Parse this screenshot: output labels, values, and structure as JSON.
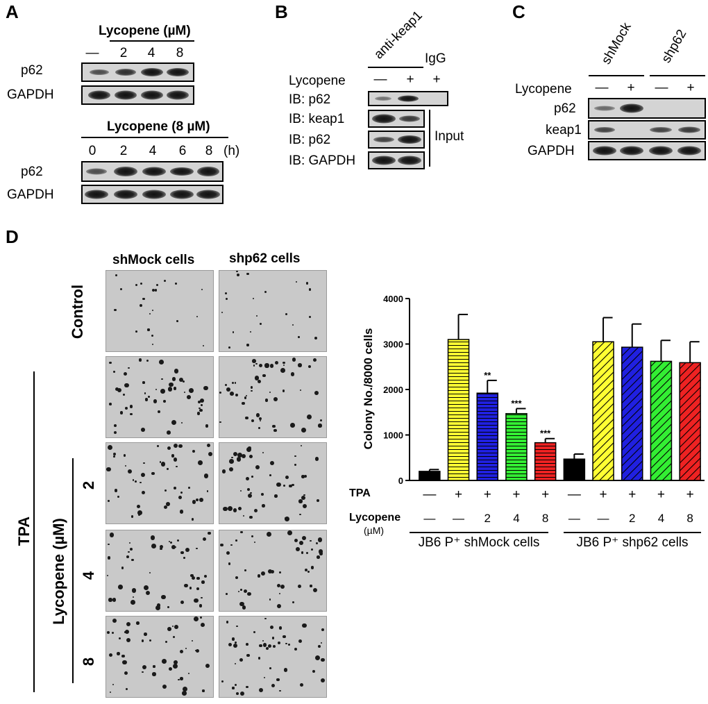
{
  "panelA": {
    "letter": "A",
    "blot1": {
      "header": "Lycopene (µM)",
      "lanes": [
        "—",
        "2",
        "4",
        "8"
      ],
      "rows": [
        "p62",
        "GAPDH"
      ]
    },
    "blot2": {
      "header": "Lycopene (8 µM)",
      "lanes": [
        "0",
        "2",
        "4",
        "6",
        "8"
      ],
      "unit": "(h)",
      "rows": [
        "p62",
        "GAPDH"
      ]
    }
  },
  "panelB": {
    "letter": "B",
    "ip_label": "anti-keap1",
    "igg_label": "IgG",
    "treatment_label": "Lycopene",
    "treatment_signs": [
      "—",
      "+",
      "+"
    ],
    "rows": [
      "IB: p62",
      "IB: keap1",
      "IB: p62",
      "IB: GAPDH"
    ],
    "input_label": "Input"
  },
  "panelC": {
    "letter": "C",
    "groups": [
      "shMock",
      "shp62"
    ],
    "treatment_label": "Lycopene",
    "treatment_signs": [
      "—",
      "+",
      "—",
      "+"
    ],
    "rows": [
      "p62",
      "keap1",
      "GAPDH"
    ]
  },
  "panelD": {
    "letter": "D",
    "col_headers": [
      "shMock cells",
      "shp62 cells"
    ],
    "row_control": "Control",
    "row_tpa": "TPA",
    "row_lycopene": "Lycopene (µM)",
    "doses": [
      "2",
      "4",
      "8"
    ]
  },
  "chart_data": {
    "type": "bar",
    "ylabel": "Colony No./8000 cells",
    "ylim": [
      0,
      4000
    ],
    "yticks": [
      0,
      1000,
      2000,
      3000,
      4000
    ],
    "bars": [
      {
        "value": 200,
        "error": 40,
        "color": "#000000",
        "pattern": "solid",
        "sig": ""
      },
      {
        "value": 3100,
        "error": 550,
        "color": "#ffff33",
        "pattern": "horizontal",
        "sig": ""
      },
      {
        "value": 1920,
        "error": 280,
        "color": "#2020e0",
        "pattern": "horizontal",
        "sig": "**"
      },
      {
        "value": 1470,
        "error": 110,
        "color": "#33ee33",
        "pattern": "horizontal",
        "sig": "***"
      },
      {
        "value": 830,
        "error": 90,
        "color": "#ee2222",
        "pattern": "horizontal",
        "sig": "***"
      },
      {
        "value": 470,
        "error": 110,
        "color": "#000000",
        "pattern": "solid",
        "sig": ""
      },
      {
        "value": 3050,
        "error": 530,
        "color": "#ffff33",
        "pattern": "diagonal",
        "sig": ""
      },
      {
        "value": 2930,
        "error": 510,
        "color": "#2020e0",
        "pattern": "diagonal",
        "sig": ""
      },
      {
        "value": 2620,
        "error": 460,
        "color": "#33ee33",
        "pattern": "diagonal",
        "sig": ""
      },
      {
        "value": 2590,
        "error": 460,
        "color": "#ee2222",
        "pattern": "diagonal",
        "sig": ""
      }
    ],
    "tpa_label": "TPA",
    "tpa_signs": [
      "—",
      "+",
      "+",
      "+",
      "+",
      "—",
      "+",
      "+",
      "+",
      "+"
    ],
    "lycopene_label": "Lycopene",
    "lycopene_unit": "(µM)",
    "lycopene_values": [
      "—",
      "—",
      "2",
      "4",
      "8",
      "—",
      "—",
      "2",
      "4",
      "8"
    ],
    "group_labels": [
      "JB6 P⁺ shMock cells",
      "JB6 P⁺ shp62 cells"
    ]
  }
}
